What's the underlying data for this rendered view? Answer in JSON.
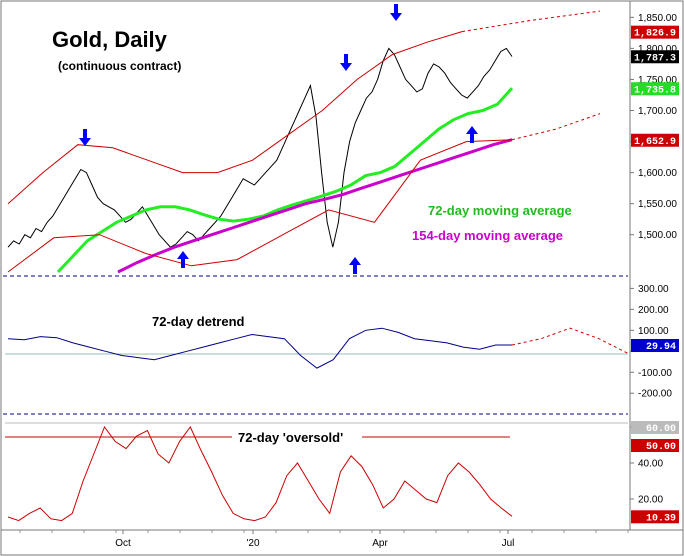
{
  "chart_data": {
    "type": "line",
    "title": "Gold, Daily",
    "subtitle": "(continuous contract)",
    "x_labels": [
      "Oct",
      "'20",
      "Apr",
      "Jul"
    ],
    "panels": [
      {
        "name": "price",
        "y_ticks": [
          1500,
          1550,
          1600,
          1650,
          1700,
          1750,
          1800,
          1850
        ],
        "y_tick_labels": [
          "1,500.00",
          "1,550.00",
          "1,600.00",
          "1,650.00",
          "1,700.00",
          "1,750.00",
          "1,800.00",
          "1,850.00"
        ],
        "ylim": [
          1440,
          1865
        ],
        "value_labels": [
          {
            "text": "1,826.9",
            "value": 1826.9,
            "color": "#cc0000"
          },
          {
            "text": "1,787.3",
            "value": 1787.3,
            "color": "#000000"
          },
          {
            "text": "1,735.8",
            "value": 1735.8,
            "color": "#22dd22"
          },
          {
            "text": "1,652.9",
            "value": 1652.9,
            "color": "#cc0000"
          }
        ],
        "annotations": [
          {
            "text": "72-day moving average",
            "color": "#22bb22"
          },
          {
            "text": "154-day moving average",
            "color": "#cc00cc"
          }
        ],
        "series": [
          {
            "name": "price",
            "color": "#000000",
            "values": [
              1480,
              1490,
              1485,
              1500,
              1495,
              1510,
              1505,
              1520,
              1530,
              1545,
              1560,
              1575,
              1590,
              1605,
              1600,
              1580,
              1560,
              1550,
              1545,
              1540,
              1530,
              1520,
              1525,
              1535,
              1545,
              1530,
              1515,
              1500,
              1490,
              1480,
              1485,
              1495,
              1505,
              1500,
              1490,
              1500,
              1510,
              1520,
              1530,
              1545,
              1560,
              1575,
              1590,
              1585,
              1580,
              1590,
              1600,
              1610,
              1620,
              1640,
              1660,
              1680,
              1700,
              1720,
              1740,
              1690,
              1600,
              1520,
              1480,
              1520,
              1600,
              1650,
              1680,
              1700,
              1720,
              1730,
              1750,
              1780,
              1800,
              1790,
              1770,
              1750,
              1740,
              1730,
              1735,
              1760,
              1775,
              1770,
              1760,
              1745,
              1735,
              1725,
              1720,
              1730,
              1740,
              1755,
              1765,
              1780,
              1795,
              1800,
              1787
            ]
          },
          {
            "name": "72-day moving average",
            "color": "#22ee22",
            "values": [
              1440,
              1465,
              1490,
              1505,
              1520,
              1530,
              1540,
              1545,
              1545,
              1540,
              1532,
              1525,
              1522,
              1525,
              1530,
              1540,
              1548,
              1555,
              1562,
              1570,
              1580,
              1595,
              1600,
              1610,
              1630,
              1650,
              1670,
              1685,
              1695,
              1700,
              1710,
              1736
            ]
          },
          {
            "name": "154-day moving average",
            "color": "#cc00cc",
            "values": [
              1440,
              1455,
              1468,
              1480,
              1490,
              1500,
              1510,
              1520,
              1530,
              1540,
              1550,
              1557,
              1565,
              1575,
              1585,
              1595,
              1605,
              1615,
              1625,
              1635,
              1645,
              1653
            ]
          },
          {
            "name": "upper band",
            "color": "#cc0000",
            "values": [
              1550,
              1600,
              1645,
              1640,
              1620,
              1600,
              1600,
              1620,
              1660,
              1700,
              1750,
              1790,
              1810,
              1827
            ]
          },
          {
            "name": "lower band",
            "color": "#cc0000",
            "values": [
              1440,
              1495,
              1500,
              1470,
              1450,
              1460,
              1500,
              1540,
              1520,
              1620,
              1650,
              1653
            ]
          },
          {
            "name": "upper band projection",
            "color": "#cc0000",
            "style": "dashed",
            "values": [
              1827,
              1845,
              1860
            ]
          },
          {
            "name": "lower band projection",
            "color": "#cc0000",
            "style": "dashed",
            "values": [
              1653,
              1670,
              1695
            ]
          }
        ],
        "arrows": [
          {
            "direction": "down",
            "color": "#0000ff"
          },
          {
            "direction": "up",
            "color": "#0000ff"
          },
          {
            "direction": "down",
            "color": "#0000ff"
          },
          {
            "direction": "up",
            "color": "#0000ff"
          },
          {
            "direction": "down",
            "color": "#0000ff"
          },
          {
            "direction": "up",
            "color": "#0000ff"
          }
        ]
      },
      {
        "name": "detrend",
        "annotation": "72-day detrend",
        "y_ticks": [
          300,
          200,
          100,
          0,
          -100,
          -200
        ],
        "y_tick_labels": [
          "300.00",
          "200.00",
          "100.00",
          "",
          "-100.00",
          "-200.00"
        ],
        "ylim": [
          -280,
          340
        ],
        "value_labels": [
          {
            "text": "29.94",
            "value": 29.94,
            "color": "#0000cc"
          }
        ],
        "series": [
          {
            "name": "72-day detrend",
            "color": "#00008b",
            "values": [
              60,
              55,
              70,
              65,
              40,
              20,
              0,
              -20,
              -30,
              -40,
              -20,
              0,
              20,
              40,
              60,
              80,
              70,
              60,
              -20,
              -80,
              -40,
              60,
              100,
              110,
              90,
              60,
              50,
              40,
              20,
              10,
              30,
              29.94
            ]
          },
          {
            "name": "projection",
            "color": "#cc0000",
            "style": "dashed",
            "values": [
              29.94,
              60,
              110,
              60,
              -10
            ]
          }
        ]
      },
      {
        "name": "oversold",
        "annotation": "72-day 'oversold'",
        "y_ticks": [
          60,
          40,
          20
        ],
        "y_tick_labels": [
          "60.00",
          "40.00",
          "20.00"
        ],
        "ylim": [
          5,
          65
        ],
        "value_labels": [
          {
            "text": "60.00",
            "value": 60.0,
            "color": "#bbbbbb"
          },
          {
            "text": "50.00",
            "value": 50.0,
            "color": "#cc0000"
          },
          {
            "text": "10.39",
            "value": 10.39,
            "color": "#cc0000"
          }
        ],
        "series": [
          {
            "name": "72-day 'oversold'",
            "color": "#cc0000",
            "values": [
              10,
              8,
              12,
              15,
              9,
              8,
              12,
              30,
              45,
              60,
              52,
              48,
              55,
              58,
              45,
              40,
              52,
              60,
              47,
              35,
              22,
              12,
              9,
              8,
              10,
              18,
              33,
              40,
              30,
              20,
              12,
              35,
              44,
              38,
              28,
              15,
              20,
              30,
              25,
              20,
              18,
              33,
              40,
              35,
              28,
              20,
              15,
              10.39
            ]
          }
        ]
      }
    ]
  }
}
